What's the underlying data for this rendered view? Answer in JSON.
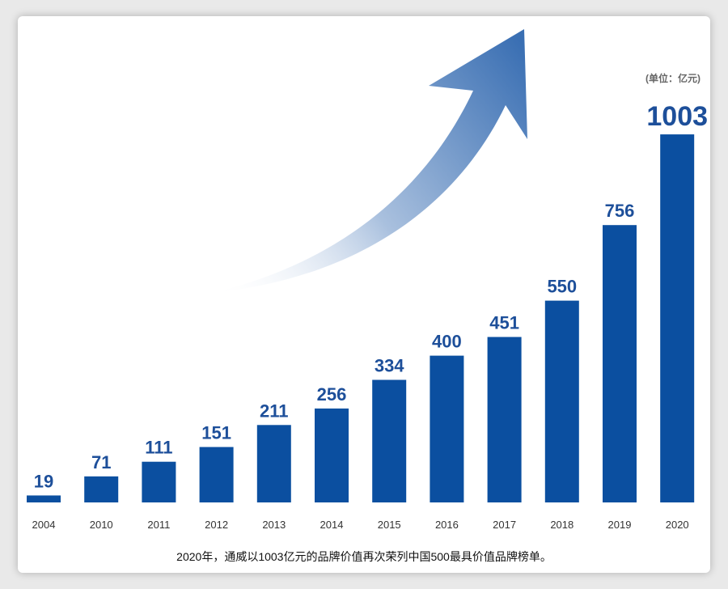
{
  "chart_data": {
    "type": "bar",
    "categories": [
      "2004",
      "2010",
      "2011",
      "2012",
      "2013",
      "2014",
      "2015",
      "2016",
      "2017",
      "2018",
      "2019",
      "2020"
    ],
    "values": [
      19,
      71,
      111,
      151,
      211,
      256,
      334,
      400,
      451,
      550,
      756,
      1003
    ],
    "unit_label": "(单位：亿元)",
    "title": "",
    "xlabel": "",
    "ylabel": "",
    "grid": false,
    "legend": "none",
    "bar_color": "#0b4fa0",
    "label_color": "#1d4f9a",
    "arrow_color": "#3a6fb3",
    "caption": "2020年，通威以1003亿元的品牌价值再次荣列中国500最具价值品牌榜单。"
  }
}
